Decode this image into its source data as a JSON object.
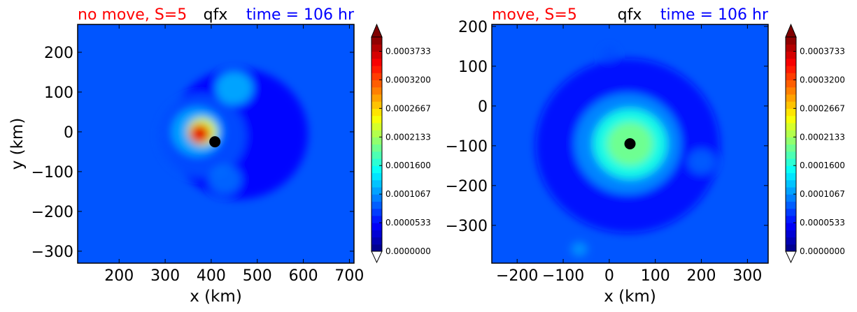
{
  "chart_data": [
    {
      "type": "heatmap",
      "title_left": "no move, S=5",
      "title_center": "qfx",
      "title_right": "time = 106 hr",
      "xlabel": "x (km)",
      "ylabel": "y (km)",
      "xlim": [
        110,
        710
      ],
      "ylim": [
        -330,
        270
      ],
      "xticks": [
        200,
        300,
        400,
        500,
        600,
        700
      ],
      "yticks": [
        200,
        100,
        0,
        -100,
        -200,
        -300
      ],
      "xtick_labels": [
        "200",
        "300",
        "400",
        "500",
        "600",
        "700"
      ],
      "ytick_labels": [
        "200",
        "100",
        "0",
        "−100",
        "−200",
        "−300"
      ],
      "center_marker": {
        "x": 408,
        "y": -25
      },
      "colorbar": {
        "min": 0.0,
        "max": 0.0004,
        "tick_values": [
          0.0,
          5.33e-05,
          0.0001067,
          0.00016,
          0.0002133,
          0.0002667,
          0.00032,
          0.0003733
        ],
        "tick_labels": [
          "0.0000000",
          "0.0000533",
          "0.0001067",
          "0.0001600",
          "0.0002133",
          "0.0002667",
          "0.0003200",
          "0.0003733"
        ],
        "extend": "both"
      },
      "field": {
        "background": 4e-05,
        "features": [
          {
            "x": 460,
            "y": -5,
            "value": 5e-05,
            "ring": true,
            "radius": 150
          },
          {
            "x": 380,
            "y": -10,
            "value": 8e-05,
            "ring": true,
            "radius": 95
          },
          {
            "x": 370,
            "y": 0,
            "value": 0.000115,
            "ring": true,
            "radius": 55
          },
          {
            "x": 380,
            "y": 0,
            "value": 0.00024,
            "ring": true,
            "radius": 32
          },
          {
            "x": 375,
            "y": -5,
            "value": 0.00036,
            "ring": true,
            "radius": 22
          },
          {
            "x": 450,
            "y": 110,
            "value": 0.000125,
            "ring": false,
            "radius": 40
          },
          {
            "x": 430,
            "y": -120,
            "value": 9.5e-05,
            "ring": false,
            "radius": 35
          }
        ]
      }
    },
    {
      "type": "heatmap",
      "title_left": "move, S=5",
      "title_center": "qfx",
      "title_right": "time = 106 hr",
      "xlabel": "x (km)",
      "ylabel": "",
      "xlim": [
        -255,
        345
      ],
      "ylim": [
        -395,
        205
      ],
      "xticks": [
        -200,
        -100,
        0,
        100,
        200,
        300
      ],
      "yticks": [
        200,
        100,
        0,
        -100,
        -200,
        -300
      ],
      "xtick_labels": [
        "−200",
        "−100",
        "0",
        "100",
        "200",
        "300"
      ],
      "ytick_labels": [
        "200",
        "100",
        "0",
        "−100",
        "−200",
        "−300"
      ],
      "center_marker": {
        "x": 45,
        "y": -95
      },
      "colorbar": {
        "min": 0.0,
        "max": 0.0004,
        "tick_values": [
          0.0,
          5.33e-05,
          0.0001067,
          0.00016,
          0.0002133,
          0.0002667,
          0.00032,
          0.0003733
        ],
        "tick_labels": [
          "0.0000000",
          "0.0000533",
          "0.0001067",
          "0.0001600",
          "0.0002133",
          "0.0002667",
          "0.0003200",
          "0.0003733"
        ],
        "extend": "both"
      },
      "field": {
        "background": 4e-05,
        "features": [
          {
            "x": 40,
            "y": -100,
            "value": 5.5e-05,
            "ring": true,
            "radius": 200
          },
          {
            "x": 40,
            "y": -95,
            "value": 0.000105,
            "ring": true,
            "radius": 115
          },
          {
            "x": 45,
            "y": -95,
            "value": 0.00016,
            "ring": true,
            "radius": 80
          },
          {
            "x": 45,
            "y": -95,
            "value": 0.000195,
            "ring": true,
            "radius": 50
          },
          {
            "x": 0,
            "y": 130,
            "value": 8e-05,
            "ring": false,
            "radius": 18
          },
          {
            "x": -65,
            "y": -360,
            "value": 0.00011,
            "ring": false,
            "radius": 18
          },
          {
            "x": 200,
            "y": -140,
            "value": 9e-05,
            "ring": false,
            "radius": 30
          }
        ]
      }
    }
  ],
  "colors": {
    "title_left": "#ff0000",
    "title_center": "#000000",
    "title_right": "#0000ff",
    "marker": "#000000",
    "colormap": "jet"
  }
}
